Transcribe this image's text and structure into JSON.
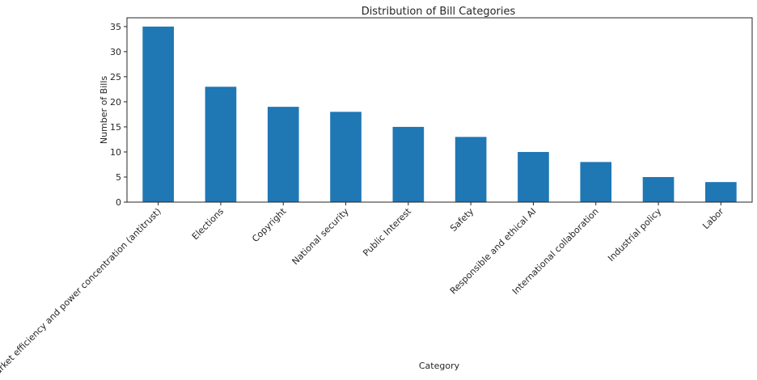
{
  "chart_data": {
    "type": "bar",
    "title": "Distribution of Bill Categories",
    "xlabel": "Category",
    "ylabel": "Number of Bills",
    "categories": [
      "Market efficiency and power concentration (antitrust)",
      "Elections",
      "Copyright",
      "National security",
      "Public Interest",
      "Safety",
      "Responsible and ethical AI",
      "International collaboration",
      "Industrial policy",
      "Labor"
    ],
    "values": [
      35,
      23,
      19,
      18,
      15,
      13,
      10,
      8,
      5,
      4
    ],
    "ylim": [
      0,
      36.75
    ],
    "yticks": [
      0,
      5,
      10,
      15,
      20,
      25,
      30,
      35
    ],
    "bar_color": "#1f77b4",
    "grid": false,
    "legend": "none"
  }
}
